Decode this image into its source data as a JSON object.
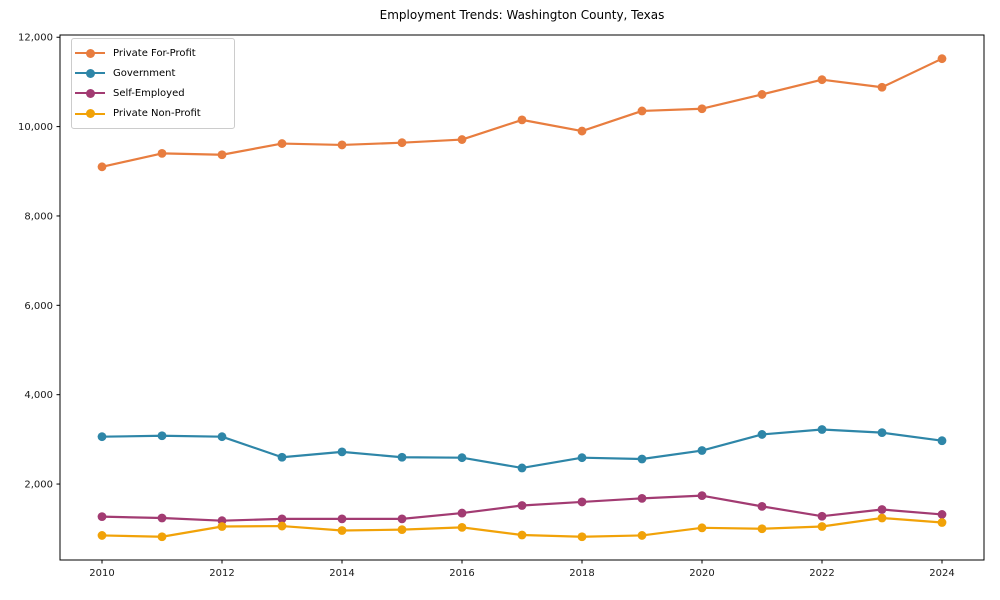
{
  "chart_data": {
    "type": "line",
    "title": "Employment Trends: Washington County, Texas",
    "xlabel": "",
    "ylabel": "",
    "x": [
      2010,
      2011,
      2012,
      2013,
      2014,
      2015,
      2016,
      2017,
      2018,
      2019,
      2020,
      2021,
      2022,
      2023,
      2024
    ],
    "series": [
      {
        "name": "Private For-Profit",
        "color": "#e87d3f",
        "values": [
          9100,
          9400,
          9370,
          9620,
          9590,
          9640,
          9710,
          10150,
          9900,
          10350,
          10400,
          10720,
          11050,
          10880,
          11520
        ]
      },
      {
        "name": "Government",
        "color": "#2e86a8",
        "values": [
          3060,
          3080,
          3060,
          2600,
          2720,
          2600,
          2590,
          2360,
          2590,
          2560,
          2750,
          3110,
          3220,
          3150,
          2970
        ]
      },
      {
        "name": "Self-Employed",
        "color": "#a23b72",
        "values": [
          1270,
          1240,
          1180,
          1220,
          1220,
          1220,
          1350,
          1520,
          1600,
          1680,
          1740,
          1500,
          1280,
          1430,
          1320
        ]
      },
      {
        "name": "Private Non-Profit",
        "color": "#f1a208",
        "values": [
          850,
          820,
          1050,
          1060,
          960,
          980,
          1030,
          860,
          820,
          850,
          1020,
          1000,
          1050,
          1240,
          1140
        ]
      }
    ],
    "xticks": [
      2010,
      2012,
      2014,
      2016,
      2018,
      2020,
      2022,
      2024
    ],
    "yticks": [
      2000,
      4000,
      6000,
      8000,
      10000,
      12000
    ],
    "ytick_labels": [
      "2,000",
      "4,000",
      "6,000",
      "8,000",
      "10,000",
      "12,000"
    ],
    "xlim": [
      2009.3,
      2024.7
    ],
    "ylim": [
      300,
      12050
    ],
    "grid": false,
    "legend_position": "upper left"
  }
}
